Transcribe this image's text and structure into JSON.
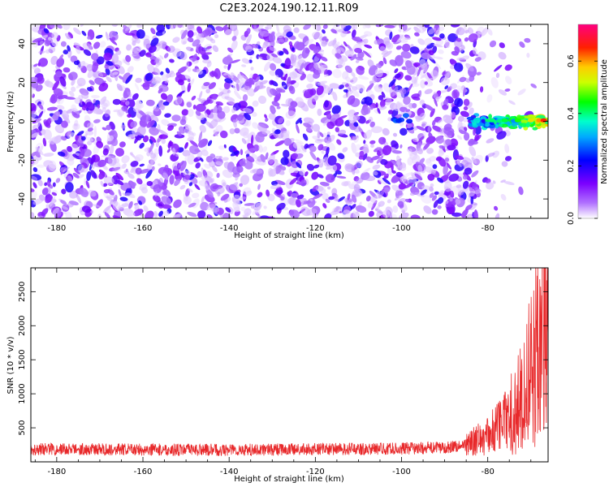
{
  "title": "C2E3.2024.190.12.11.R09",
  "chart_data": [
    {
      "type": "heatmap",
      "xlabel": "Height of straight line (km)",
      "ylabel": "Frequency (Hz)",
      "xlim": [
        -186,
        -66
      ],
      "ylim": [
        -50,
        50
      ],
      "xticks": [
        -180,
        -160,
        -140,
        -120,
        -100,
        -80
      ],
      "yticks": [
        -40,
        -20,
        0,
        20,
        40
      ],
      "colorbar": {
        "label": "Normalized spectral amplitude",
        "range": [
          0,
          0.74
        ],
        "ticks": [
          0.0,
          0.2,
          0.4,
          0.6
        ],
        "colors": [
          "#ffffff",
          "#7b00ff",
          "#0000ff",
          "#00ffff",
          "#00ff00",
          "#ffff00",
          "#ff0000",
          "#ff0080"
        ]
      },
      "features": {
        "noise_level": 0.1,
        "signal_band_hz": [
          -3,
          3
        ],
        "signal_start_km": -84,
        "signal_peak": 0.65,
        "signal_spot_km": -100
      }
    },
    {
      "type": "line",
      "xlabel": "Height of straight line (km)",
      "ylabel": "SNR (10 * v/v)",
      "xlim": [
        -186,
        -66
      ],
      "ylim": [
        0,
        2850
      ],
      "xticks": [
        -180,
        -160,
        -140,
        -120,
        -100,
        -80
      ],
      "yticks": [
        500,
        1000,
        1500,
        2000,
        2500
      ],
      "line_color": "#e8282a",
      "series_summary": {
        "baseline": 180,
        "baseline_spread": 90,
        "rise_start_km": -85,
        "values_km_snr": [
          [
            -186,
            190
          ],
          [
            -160,
            180
          ],
          [
            -140,
            175
          ],
          [
            -120,
            185
          ],
          [
            -100,
            195
          ],
          [
            -90,
            210
          ],
          [
            -85,
            250
          ],
          [
            -80,
            380
          ],
          [
            -76,
            620
          ],
          [
            -73,
            900
          ],
          [
            -70,
            1450
          ],
          [
            -68,
            2000
          ],
          [
            -67,
            2800
          ],
          [
            -66,
            1500
          ]
        ]
      }
    }
  ]
}
